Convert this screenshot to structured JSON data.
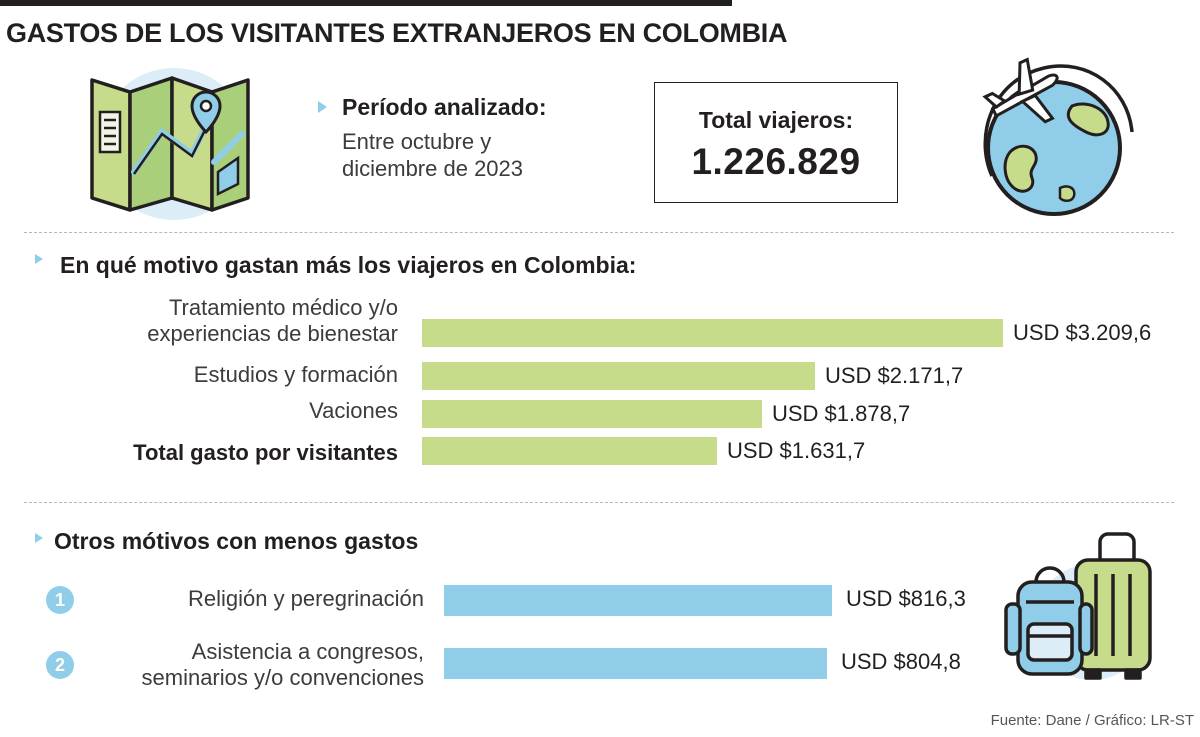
{
  "title": "GASTOS DE LOS VISITANTES EXTRANJEROS EN COLOMBIA",
  "period": {
    "label": "Período analizado:",
    "value": "Entre octubre y diciembre de 2023"
  },
  "total_travelers": {
    "label": "Total viajeros:",
    "value": "1.226.829"
  },
  "icons": {
    "map": "map-icon",
    "globe": "globe-airplane-icon",
    "luggage": "luggage-icon"
  },
  "colors": {
    "green_bar": "#c6dc8a",
    "blue_bar": "#8fcde8",
    "text": "#231f20"
  },
  "source": "Fuente: Dane / Gráfico: LR-ST",
  "chart_data": [
    {
      "type": "bar",
      "orientation": "horizontal",
      "title": "En qué motivo gastan más los viajeros en Colombia:",
      "categories": [
        "Tratamiento médico y/o experiencias de bienestar",
        "Estudios y formación",
        "Vaciones",
        "Total gasto por visitantes"
      ],
      "values": [
        3209.6,
        2171.7,
        1878.7,
        1631.7
      ],
      "value_labels": [
        "USD $3.209,6",
        "USD $2.171,7",
        "USD $1.878,7",
        "USD $1.631,7"
      ],
      "emphasized": [
        false,
        false,
        false,
        true
      ],
      "color": "#c6dc8a"
    },
    {
      "type": "bar",
      "orientation": "horizontal",
      "title": "Otros mótivos con menos gastos",
      "numbers": [
        "1",
        "2"
      ],
      "categories": [
        "Religión y peregrinación",
        "Asistencia a congresos, seminarios y/o convenciones"
      ],
      "values": [
        816.3,
        804.8
      ],
      "value_labels": [
        "USD $816,3",
        "USD $804,8"
      ],
      "color": "#8fcde8"
    }
  ]
}
